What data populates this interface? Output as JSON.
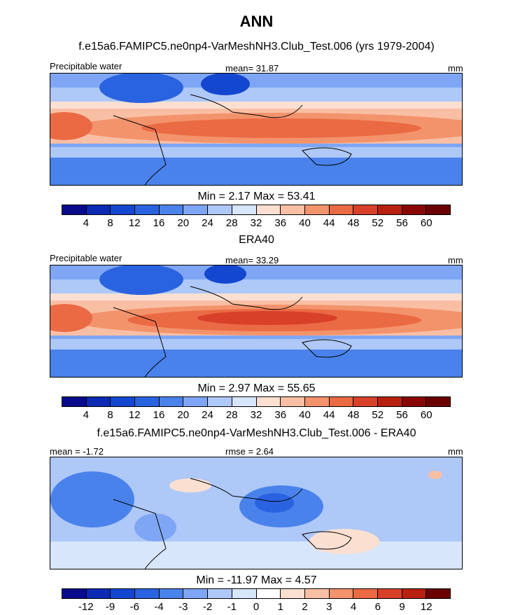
{
  "chart_data": {
    "type": "heatmap",
    "title": "ANN",
    "panels": [
      {
        "title": "f.e15a6.FAMIPC5.ne0np4-VarMeshNH3.Club_Test.006 (yrs 1979-2004)",
        "left_label": "Precipitable water",
        "center_label": "mean=  31.87",
        "units": "mm",
        "minmax": "Min =   2.17 Max =  53.41",
        "colorbar_ticks": [
          "4",
          "8",
          "12",
          "16",
          "20",
          "24",
          "28",
          "32",
          "36",
          "40",
          "44",
          "48",
          "52",
          "56",
          "60"
        ],
        "colors": [
          "#0a0a8c",
          "#0b2bb4",
          "#1447d0",
          "#2a63e0",
          "#4a82ec",
          "#7ea6f4",
          "#aec8f8",
          "#d8e6fb",
          "#fbe0d2",
          "#f9bfa4",
          "#f3936c",
          "#ea6a44",
          "#d8402a",
          "#b8200f",
          "#8a0606",
          "#6a0000"
        ]
      },
      {
        "title": "ERA40",
        "left_label": "Precipitable water",
        "center_label": "mean=  33.29",
        "units": "mm",
        "minmax": "Min =   2.97 Max =  55.65",
        "colorbar_ticks": [
          "4",
          "8",
          "12",
          "16",
          "20",
          "24",
          "28",
          "32",
          "36",
          "40",
          "44",
          "48",
          "52",
          "56",
          "60"
        ],
        "colors": [
          "#0a0a8c",
          "#0b2bb4",
          "#1447d0",
          "#2a63e0",
          "#4a82ec",
          "#7ea6f4",
          "#aec8f8",
          "#d8e6fb",
          "#fbe0d2",
          "#f9bfa4",
          "#f3936c",
          "#ea6a44",
          "#d8402a",
          "#b8200f",
          "#8a0606",
          "#6a0000"
        ]
      },
      {
        "title": "f.e15a6.FAMIPC5.ne0np4-VarMeshNH3.Club_Test.006 - ERA40",
        "left_label": "mean =  -1.72",
        "center_label": "rmse =   2.64",
        "units": "mm",
        "minmax": "Min = -11.97 Max =   4.57",
        "colorbar_ticks": [
          "-12",
          "-9",
          "-6",
          "-4",
          "-3",
          "-2",
          "-1",
          "0",
          "1",
          "2",
          "3",
          "4",
          "6",
          "9",
          "12"
        ],
        "colors": [
          "#0a0a8c",
          "#0b2bb4",
          "#1447d0",
          "#2a63e0",
          "#4a82ec",
          "#7ea6f4",
          "#aec8f8",
          "#d8e6fb",
          "#ffffff",
          "#fbe0d2",
          "#f9bfa4",
          "#f3936c",
          "#ea6a44",
          "#d8402a",
          "#b8200f",
          "#6a0000"
        ]
      }
    ]
  }
}
